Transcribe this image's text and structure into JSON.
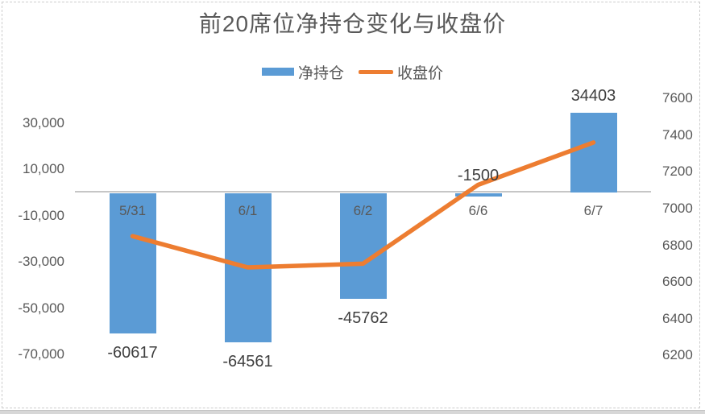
{
  "chart_data": {
    "type": "bar+line",
    "title": "前20席位净持仓变化与收盘价",
    "categories": [
      "5/31",
      "6/1",
      "6/2",
      "6/6",
      "6/7"
    ],
    "series": [
      {
        "name": "净持仓",
        "kind": "bar",
        "axis": "left",
        "color": "#5B9BD5",
        "values": [
          -60617,
          -64561,
          -45762,
          -1500,
          34403
        ]
      },
      {
        "name": "收盘价",
        "kind": "line",
        "axis": "right",
        "color": "#ED7D31",
        "values": [
          6850,
          6680,
          6700,
          7130,
          7360
        ]
      }
    ],
    "left_axis": {
      "tick_labels": [
        "30,000",
        "10,000",
        "-10,000",
        "-30,000",
        "-50,000",
        "-70,000"
      ],
      "tick_values": [
        30000,
        10000,
        -10000,
        -30000,
        -50000,
        -70000
      ],
      "tick_step": 20000
    },
    "right_axis": {
      "tick_labels": [
        "7600",
        "7400",
        "7200",
        "7000",
        "6800",
        "6600",
        "6400",
        "6200"
      ],
      "tick_values": [
        7600,
        7400,
        7200,
        7000,
        6800,
        6600,
        6400,
        6200
      ],
      "tick_step": 200
    },
    "legend": {
      "position": "top"
    },
    "gridlines": "zero-line-only"
  }
}
